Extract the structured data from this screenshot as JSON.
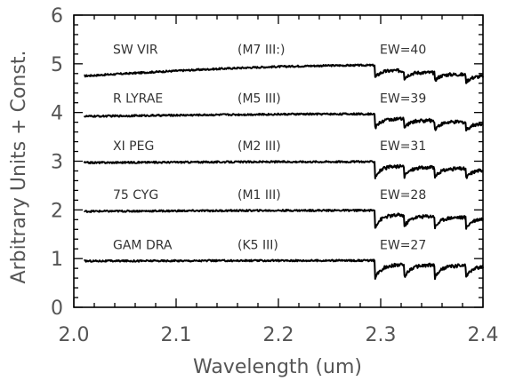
{
  "chart_data": {
    "type": "line",
    "title": "",
    "xlabel": "Wavelength (um)",
    "ylabel": "Arbitrary Units + Const.",
    "xlim": [
      2.0,
      2.4
    ],
    "ylim": [
      0,
      6
    ],
    "xticks": [
      "2.0",
      "2.1",
      "2.2",
      "2.3",
      "2.4"
    ],
    "yticks": [
      "0",
      "1",
      "2",
      "3",
      "4",
      "5",
      "6"
    ],
    "grid": false,
    "legend": "none",
    "x_start": 2.01,
    "bandhead_wavelengths": [
      2.294,
      2.323,
      2.353,
      2.383
    ],
    "series": [
      {
        "name": "SW VIR",
        "spectral_type": "(M7 III:)",
        "ew_label": "EW=40",
        "continuum_start": 4.75,
        "continuum_mid": 4.97,
        "continuum_end": 4.75
      },
      {
        "name": "R LYRAE",
        "spectral_type": "(M5 III)",
        "ew_label": "EW=39",
        "continuum_start": 3.92,
        "continuum_mid": 3.97,
        "continuum_end": 3.78
      },
      {
        "name": "XI PEG",
        "spectral_type": "(M2 III)",
        "ew_label": "EW=31",
        "continuum_start": 2.97,
        "continuum_mid": 2.99,
        "continuum_end": 2.83
      },
      {
        "name": "75 CYG",
        "spectral_type": "(M1 III)",
        "ew_label": "EW=28",
        "continuum_start": 1.97,
        "continuum_mid": 1.99,
        "continuum_end": 1.83
      },
      {
        "name": "GAM DRA",
        "spectral_type": "(K5 III)",
        "ew_label": "EW=27",
        "continuum_start": 0.95,
        "continuum_mid": 0.96,
        "continuum_end": 0.85
      }
    ]
  }
}
